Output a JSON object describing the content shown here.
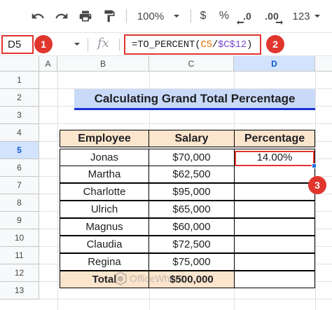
{
  "toolbar": {
    "zoom": "100%",
    "currency": "$",
    "percent": "%",
    "decrease_decimal": ".0",
    "increase_decimal": ".00",
    "more_formats": "123"
  },
  "formula_bar": {
    "name_box": "D5",
    "fx_label": "fx",
    "formula_fn": "=TO_PERCENT(",
    "formula_ref1": "C5",
    "formula_slash": "/",
    "formula_ref2": "$C$12",
    "formula_close": ")"
  },
  "callouts": [
    "1",
    "2",
    "3"
  ],
  "columns": [
    "A",
    "B",
    "C",
    "D"
  ],
  "rows": [
    "1",
    "2",
    "3",
    "4",
    "5",
    "6",
    "7",
    "8",
    "9",
    "10",
    "11",
    "12",
    "13"
  ],
  "sheet": {
    "title": "Calculating Grand Total Percentage",
    "headers": [
      "Employee",
      "Salary",
      "Percentage"
    ],
    "data": [
      {
        "employee": "Jonas",
        "salary": "$70,000",
        "percentage": "14.00%"
      },
      {
        "employee": "Martha",
        "salary": "$62,500",
        "percentage": ""
      },
      {
        "employee": "Charlotte",
        "salary": "$95,000",
        "percentage": ""
      },
      {
        "employee": "Ulrich",
        "salary": "$65,000",
        "percentage": ""
      },
      {
        "employee": "Magnus",
        "salary": "$60,000",
        "percentage": ""
      },
      {
        "employee": "Claudia",
        "salary": "$72,500",
        "percentage": ""
      },
      {
        "employee": "Regina",
        "salary": "$75,000",
        "percentage": ""
      }
    ],
    "total_label": "Total",
    "total_value": "$500,000"
  },
  "watermark": "OfficeWheel",
  "colors": {
    "highlight_red": "#e0362e",
    "title_fill": "#c9daf8",
    "header_fill": "#fce5cd",
    "selection_blue": "#1a73e8"
  }
}
